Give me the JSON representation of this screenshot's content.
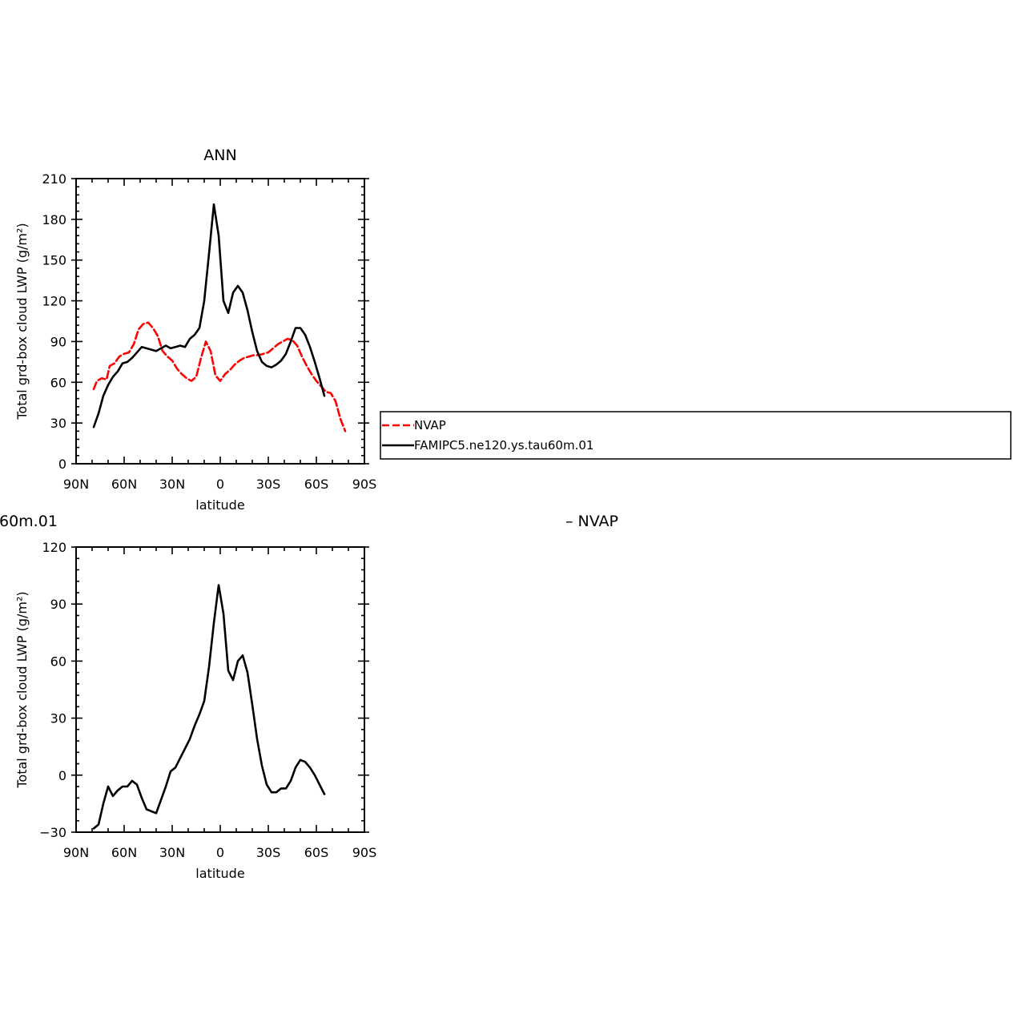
{
  "colors": {
    "nvap": "#ff0000",
    "model": "#000000"
  },
  "legend": {
    "entries": [
      {
        "label": "NVAP",
        "color": "#ff0000",
        "dash": true
      },
      {
        "label": "FAMIPC5.ne120.ys.tau60m.01",
        "color": "#000000",
        "dash": false
      }
    ]
  },
  "bottom_header": {
    "left_text": "60m.01",
    "right_text": "– NVAP"
  },
  "chart_data": [
    {
      "type": "line",
      "title": "ANN",
      "xlabel": "latitude",
      "ylabel": "Total grd-box cloud LWP (g/m²)",
      "xlim": [
        90,
        -90
      ],
      "ylim": [
        0,
        210
      ],
      "x_ticks": [
        {
          "v": 90,
          "label": "90N"
        },
        {
          "v": 60,
          "label": "60N"
        },
        {
          "v": 30,
          "label": "30N"
        },
        {
          "v": 0,
          "label": "0"
        },
        {
          "v": -30,
          "label": "30S"
        },
        {
          "v": -60,
          "label": "60S"
        },
        {
          "v": -90,
          "label": "90S"
        }
      ],
      "y_ticks": [
        0,
        30,
        60,
        90,
        120,
        150,
        180,
        210
      ],
      "series": [
        {
          "name": "NVAP",
          "color": "#ff0000",
          "dash": true,
          "x": [
            79,
            77,
            74,
            71,
            69,
            66,
            63,
            60,
            57,
            54,
            51,
            48,
            45,
            42,
            39,
            36,
            33,
            30,
            27,
            24,
            21,
            18,
            15,
            12,
            9,
            6,
            3,
            0,
            -3,
            -6,
            -9,
            -12,
            -15,
            -18,
            -21,
            -24,
            -27,
            -30,
            -33,
            -36,
            -39,
            -42,
            -45,
            -48,
            -51,
            -54,
            -57,
            -60,
            -63,
            -66,
            -69,
            -72,
            -75,
            -78
          ],
          "values": [
            55,
            61,
            63,
            62,
            72,
            74,
            79,
            81,
            82,
            88,
            99,
            103,
            104,
            100,
            94,
            83,
            79,
            76,
            70,
            66,
            63,
            61,
            64,
            78,
            90,
            83,
            65,
            61,
            66,
            69,
            73,
            76,
            78,
            79,
            80,
            80,
            81,
            82,
            85,
            88,
            90,
            92,
            91,
            87,
            79,
            72,
            66,
            61,
            57,
            53,
            52,
            46,
            33,
            24
          ]
        },
        {
          "name": "FAMIPC5.ne120.ys.tau60m.01",
          "color": "#000000",
          "dash": false,
          "x": [
            79,
            76,
            73,
            70,
            67,
            64,
            61,
            58,
            55,
            52,
            49,
            46,
            43,
            40,
            37,
            34,
            31,
            28,
            25,
            22,
            19,
            16,
            13,
            10,
            7,
            4,
            1,
            -2,
            -5,
            -8,
            -11,
            -14,
            -17,
            -20,
            -23,
            -26,
            -29,
            -32,
            -35,
            -38,
            -41,
            -44,
            -47,
            -50,
            -53,
            -56,
            -59,
            -62,
            -65
          ],
          "values": [
            27,
            37,
            50,
            58,
            64,
            68,
            74,
            75,
            78,
            82,
            86,
            85,
            84,
            83,
            85,
            87,
            85,
            86,
            87,
            86,
            92,
            95,
            100,
            120,
            155,
            191,
            168,
            120,
            111,
            126,
            131,
            126,
            113,
            97,
            83,
            75,
            72,
            71,
            73,
            76,
            81,
            90,
            100,
            100,
            95,
            86,
            75,
            63,
            50
          ]
        }
      ]
    },
    {
      "type": "line",
      "title": "",
      "xlabel": "latitude",
      "ylabel": "Total grd-box cloud LWP (g/m²)",
      "xlim": [
        90,
        -90
      ],
      "ylim": [
        -30,
        120
      ],
      "x_ticks": [
        {
          "v": 90,
          "label": "90N"
        },
        {
          "v": 60,
          "label": "60N"
        },
        {
          "v": 30,
          "label": "30N"
        },
        {
          "v": 0,
          "label": "0"
        },
        {
          "v": -30,
          "label": "30S"
        },
        {
          "v": -60,
          "label": "60S"
        },
        {
          "v": -90,
          "label": "90S"
        }
      ],
      "y_ticks": [
        -30,
        0,
        30,
        60,
        90,
        120
      ],
      "series": [
        {
          "name": "",
          "color": "#000000",
          "dash": false,
          "x": [
            79,
            76,
            73,
            70,
            67,
            64,
            61,
            58,
            55,
            52,
            49,
            46,
            43,
            40,
            37,
            34,
            31,
            28,
            25,
            22,
            19,
            16,
            13,
            10,
            7,
            4,
            1,
            -2,
            -5,
            -8,
            -11,
            -14,
            -17,
            -20,
            -23,
            -26,
            -29,
            -32,
            -35,
            -38,
            -41,
            -44,
            -47,
            -50,
            -53,
            -56,
            -59,
            -62,
            -65
          ],
          "values": [
            -28,
            -26,
            -15,
            -6,
            -11,
            -8,
            -6,
            -6,
            -3,
            -5,
            -12,
            -18,
            -19,
            -20,
            -13,
            -6,
            2,
            4,
            9,
            14,
            19,
            26,
            32,
            39,
            57,
            80,
            100,
            85,
            55,
            50,
            60,
            63,
            54,
            37,
            19,
            5,
            -5,
            -9,
            -9,
            -7,
            -7,
            -3,
            4,
            8,
            7,
            4,
            0,
            -5,
            -10
          ]
        }
      ]
    }
  ]
}
